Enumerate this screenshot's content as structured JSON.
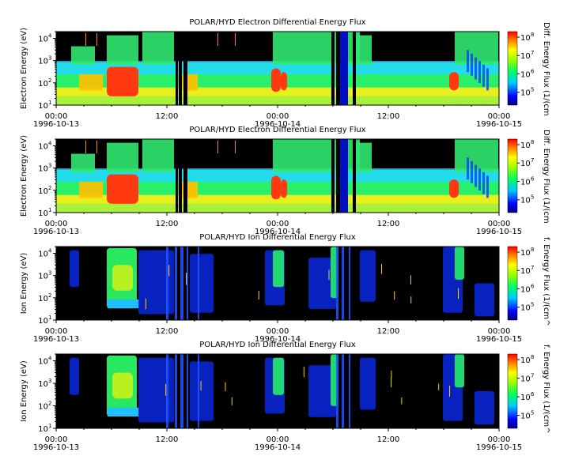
{
  "chart_data": [
    {
      "type": "heatmap",
      "title": "POLAR/HYD  Electron Differential Energy Flux",
      "ylabel": "Electron Energy (eV)",
      "colorbar_label": "Diff. Energy Flux (1/(cm",
      "y_scale": "log",
      "ylim": [
        10,
        20000
      ],
      "y_ticks": [
        "10",
        "10",
        "10",
        "10"
      ],
      "y_tick_exps": [
        "1",
        "2",
        "3",
        "4"
      ],
      "x_ticks": [
        "00:00",
        "12:00",
        "00:00",
        "12:00",
        "00:00"
      ],
      "x_dates": [
        "1996-10-13",
        "1996-10-14",
        "1996-10-15"
      ],
      "colorbar_ticks": [
        "10",
        "10",
        "10",
        "10"
      ],
      "colorbar_exps": [
        "5",
        "6",
        "7",
        "8"
      ],
      "colorbar_range": [
        20000,
        200000000
      ]
    },
    {
      "type": "heatmap",
      "title": "POLAR/HYD  Electron Differential Energy Flux",
      "ylabel": "Electron Energy (eV)",
      "colorbar_label": "Diff. Energy Flux (1/(cm",
      "y_scale": "log",
      "ylim": [
        10,
        20000
      ],
      "y_ticks": [
        "10",
        "10",
        "10",
        "10"
      ],
      "y_tick_exps": [
        "1",
        "2",
        "3",
        "4"
      ],
      "x_ticks": [
        "00:00",
        "12:00",
        "00:00",
        "12:00",
        "00:00"
      ],
      "x_dates": [
        "1996-10-13",
        "1996-10-14",
        "1996-10-15"
      ],
      "colorbar_ticks": [
        "10",
        "10",
        "10",
        "10"
      ],
      "colorbar_exps": [
        "5",
        "6",
        "7",
        "8"
      ],
      "colorbar_range": [
        20000,
        200000000
      ]
    },
    {
      "type": "heatmap",
      "title": "POLAR/HYD  Ion Differential Energy Flux",
      "ylabel": "Ion Energy (eV)",
      "colorbar_label": "f. Energy Flux (1/(cm^",
      "y_scale": "log",
      "ylim": [
        10,
        20000
      ],
      "y_ticks": [
        "10",
        "10",
        "10",
        "10"
      ],
      "y_tick_exps": [
        "1",
        "2",
        "3",
        "4"
      ],
      "x_ticks": [
        "00:00",
        "12:00",
        "00:00",
        "12:00",
        "00:00"
      ],
      "x_dates": [
        "1996-10-13",
        "1996-10-14",
        "1996-10-15"
      ],
      "colorbar_ticks": [
        "10",
        "10",
        "10",
        "10"
      ],
      "colorbar_exps": [
        "5",
        "6",
        "7",
        "8"
      ],
      "colorbar_range": [
        20000,
        200000000
      ]
    },
    {
      "type": "heatmap",
      "title": "POLAR/HYD  Ion Differential Energy Flux",
      "ylabel": "Ion Energy (eV)",
      "colorbar_label": "f. Energy Flux (1/(cm^",
      "y_scale": "log",
      "ylim": [
        10,
        20000
      ],
      "y_ticks": [
        "10",
        "10",
        "10",
        "10"
      ],
      "y_tick_exps": [
        "1",
        "2",
        "3",
        "4"
      ],
      "x_ticks": [
        "00:00",
        "12:00",
        "00:00",
        "12:00",
        "00:00"
      ],
      "x_dates": [
        "1996-10-13",
        "1996-10-14",
        "1996-10-15"
      ],
      "colorbar_ticks": [
        "10",
        "10",
        "10",
        "10"
      ],
      "colorbar_exps": [
        "5",
        "6",
        "7",
        "8"
      ],
      "colorbar_range": [
        20000,
        200000000
      ]
    }
  ]
}
